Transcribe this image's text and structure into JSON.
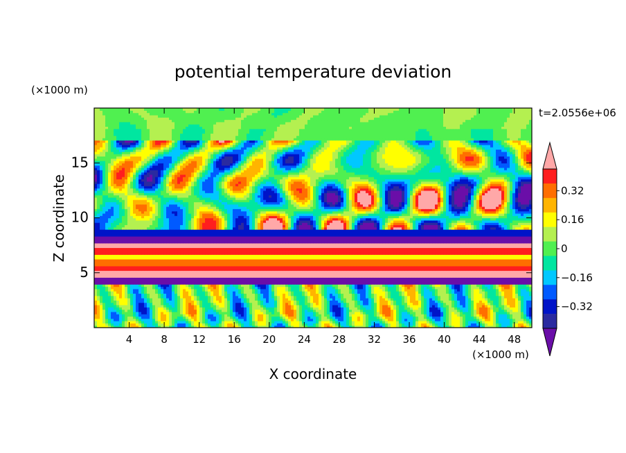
{
  "chart_data": {
    "type": "heatmap",
    "title": "potential temperature deviation",
    "xlabel": "X coordinate",
    "ylabel": "Z coordinate",
    "x_unit": "(×1000 m)",
    "y_unit": "(×1000 m)",
    "time_label": "t=2.0556e+06",
    "xlim": [
      0,
      50
    ],
    "ylim": [
      0,
      20
    ],
    "x_ticks": [
      4,
      8,
      12,
      16,
      20,
      24,
      28,
      32,
      36,
      40,
      44,
      48
    ],
    "y_ticks": [
      5,
      10,
      15
    ],
    "colorbar": {
      "levels": [
        -0.48,
        -0.4,
        -0.32,
        -0.24,
        -0.16,
        -0.08,
        0,
        0.08,
        0.16,
        0.24,
        0.32,
        0.4,
        0.48
      ],
      "colors": [
        "#6a0ea8",
        "#2a2aa0",
        "#0014c8",
        "#005aff",
        "#00c8ff",
        "#00e6a0",
        "#50f050",
        "#b4f050",
        "#ffff00",
        "#ffb400",
        "#ff6e00",
        "#ff1e1e",
        "#ffa8a8"
      ],
      "tick_labels": [
        "0.32",
        "0.16",
        "0",
        "-0.16",
        "-0.32"
      ],
      "tick_values": [
        0.32,
        0.16,
        0,
        -0.16,
        -0.32
      ]
    },
    "bands": [
      {
        "z": [
          0.0,
          3.9
        ],
        "level": "mixed",
        "pattern": "plumes"
      },
      {
        "z": [
          3.9,
          4.6
        ],
        "level": -0.48
      },
      {
        "z": [
          4.6,
          5.2
        ],
        "level": 0.48
      },
      {
        "z": [
          5.2,
          5.6
        ],
        "level": 0.4
      },
      {
        "z": [
          5.6,
          6.2
        ],
        "level": 0.32
      },
      {
        "z": [
          6.2,
          6.6
        ],
        "level": 0.16
      },
      {
        "z": [
          6.6,
          7.2
        ],
        "level": 0.4
      },
      {
        "z": [
          7.2,
          7.7
        ],
        "level": 0.48
      },
      {
        "z": [
          7.7,
          8.3
        ],
        "level": -0.48
      },
      {
        "z": [
          8.3,
          9.0
        ],
        "level": -0.32
      },
      {
        "z": [
          9.0,
          17.0
        ],
        "level": "mixed",
        "pattern": "blobs"
      },
      {
        "z": [
          17.0,
          20.0
        ],
        "level": 0,
        "pattern": "upper"
      }
    ]
  }
}
